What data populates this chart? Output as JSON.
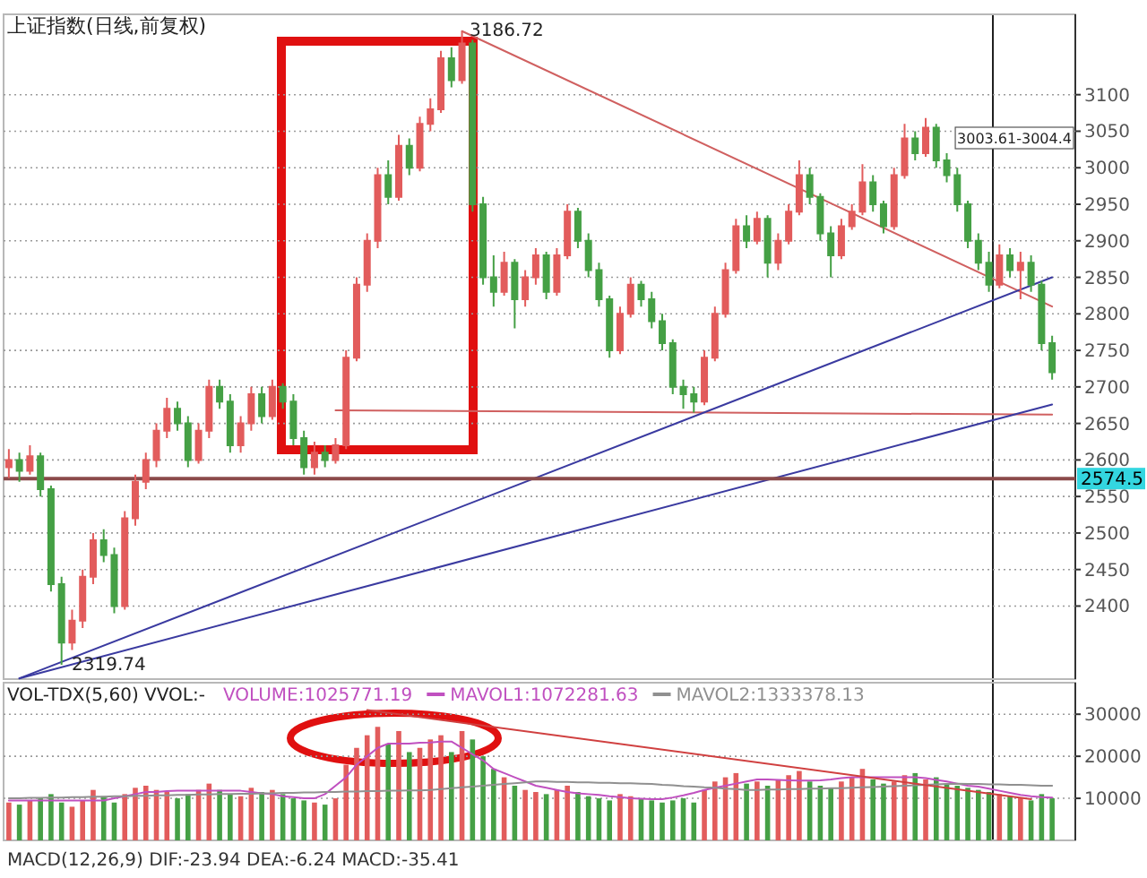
{
  "chart_data": [
    {
      "type": "candlestick",
      "title": "上证指数(日线,前复权)",
      "tick_labels": "y",
      "grid": "y",
      "categories": [
        null,
        null,
        null,
        null,
        null,
        null,
        null,
        null,
        null,
        null,
        null,
        null,
        null,
        null,
        null,
        null,
        null,
        null,
        null,
        null,
        null,
        null,
        null,
        null,
        null,
        null,
        null,
        null,
        null,
        null,
        null,
        null,
        null,
        null,
        null,
        null,
        null,
        null,
        null,
        null,
        null,
        null,
        null,
        null,
        null,
        null,
        null,
        null,
        null,
        null,
        null,
        null,
        null,
        null,
        null,
        null,
        null,
        null,
        null,
        null,
        null,
        null,
        null,
        null,
        null,
        null,
        null,
        null,
        null,
        null,
        null,
        null,
        null,
        null,
        null,
        null,
        null,
        null,
        null,
        null,
        null,
        null,
        null,
        null,
        null,
        null,
        null,
        null,
        null,
        null,
        null,
        null,
        null,
        null,
        null,
        null,
        null,
        null,
        null,
        null
      ],
      "ohlc": [
        [
          2590,
          2615,
          2575,
          2600
        ],
        [
          2600,
          2610,
          2570,
          2585
        ],
        [
          2585,
          2620,
          2580,
          2605
        ],
        [
          2605,
          2610,
          2550,
          2560
        ],
        [
          2560,
          2565,
          2420,
          2430
        ],
        [
          2430,
          2440,
          2319.74,
          2350
        ],
        [
          2350,
          2395,
          2340,
          2380
        ],
        [
          2380,
          2450,
          2370,
          2440
        ],
        [
          2440,
          2500,
          2430,
          2490
        ],
        [
          2490,
          2505,
          2460,
          2470
        ],
        [
          2470,
          2480,
          2390,
          2400
        ],
        [
          2400,
          2530,
          2395,
          2520
        ],
        [
          2520,
          2580,
          2510,
          2570
        ],
        [
          2570,
          2610,
          2560,
          2600
        ],
        [
          2600,
          2650,
          2590,
          2640
        ],
        [
          2640,
          2685,
          2630,
          2670
        ],
        [
          2670,
          2680,
          2640,
          2650
        ],
        [
          2650,
          2660,
          2590,
          2600
        ],
        [
          2600,
          2650,
          2595,
          2640
        ],
        [
          2640,
          2710,
          2630,
          2700
        ],
        [
          2700,
          2710,
          2670,
          2680
        ],
        [
          2680,
          2690,
          2610,
          2620
        ],
        [
          2620,
          2660,
          2610,
          2650
        ],
        [
          2650,
          2700,
          2640,
          2690
        ],
        [
          2690,
          2700,
          2650,
          2660
        ],
        [
          2660,
          2710,
          2655,
          2700
        ],
        [
          2700,
          2705,
          2670,
          2680
        ],
        [
          2680,
          2690,
          2620,
          2630
        ],
        [
          2630,
          2640,
          2580,
          2590
        ],
        [
          2590,
          2625,
          2580,
          2610
        ],
        [
          2610,
          2620,
          2590,
          2600
        ],
        [
          2600,
          2630,
          2595,
          2620
        ],
        [
          2620,
          2750,
          2615,
          2740
        ],
        [
          2740,
          2850,
          2735,
          2840
        ],
        [
          2840,
          2910,
          2830,
          2900
        ],
        [
          2900,
          3000,
          2890,
          2990
        ],
        [
          2990,
          3010,
          2950,
          2960
        ],
        [
          2960,
          3045,
          2955,
          3030
        ],
        [
          3030,
          3040,
          2990,
          3000
        ],
        [
          3000,
          3070,
          2995,
          3060
        ],
        [
          3060,
          3095,
          3050,
          3080
        ],
        [
          3080,
          3160,
          3075,
          3150
        ],
        [
          3150,
          3165,
          3110,
          3120
        ],
        [
          3120,
          3186.72,
          3115,
          3170
        ],
        [
          3170,
          3175,
          2940,
          2950
        ],
        [
          2950,
          2960,
          2840,
          2850
        ],
        [
          2850,
          2880,
          2810,
          2830
        ],
        [
          2830,
          2885,
          2825,
          2870
        ],
        [
          2870,
          2875,
          2780,
          2820
        ],
        [
          2820,
          2860,
          2810,
          2850
        ],
        [
          2850,
          2890,
          2840,
          2880
        ],
        [
          2880,
          2885,
          2820,
          2830
        ],
        [
          2830,
          2890,
          2825,
          2880
        ],
        [
          2880,
          2950,
          2875,
          2940
        ],
        [
          2940,
          2945,
          2890,
          2900
        ],
        [
          2900,
          2910,
          2850,
          2860
        ],
        [
          2860,
          2870,
          2810,
          2820
        ],
        [
          2820,
          2825,
          2740,
          2750
        ],
        [
          2750,
          2810,
          2745,
          2800
        ],
        [
          2800,
          2850,
          2795,
          2840
        ],
        [
          2840,
          2845,
          2810,
          2820
        ],
        [
          2820,
          2830,
          2780,
          2790
        ],
        [
          2790,
          2800,
          2750,
          2760
        ],
        [
          2760,
          2765,
          2690,
          2700
        ],
        [
          2700,
          2710,
          2670,
          2690
        ],
        [
          2690,
          2700,
          2665,
          2680
        ],
        [
          2680,
          2750,
          2675,
          2740
        ],
        [
          2740,
          2810,
          2735,
          2800
        ],
        [
          2800,
          2870,
          2795,
          2860
        ],
        [
          2860,
          2930,
          2855,
          2920
        ],
        [
          2920,
          2935,
          2890,
          2900
        ],
        [
          2900,
          2940,
          2895,
          2930
        ],
        [
          2930,
          2935,
          2850,
          2870
        ],
        [
          2870,
          2910,
          2860,
          2900
        ],
        [
          2900,
          2950,
          2895,
          2940
        ],
        [
          2940,
          3010,
          2935,
          2990
        ],
        [
          2990,
          3000,
          2950,
          2960
        ],
        [
          2960,
          2965,
          2900,
          2910
        ],
        [
          2910,
          2920,
          2850,
          2880
        ],
        [
          2880,
          2930,
          2875,
          2920
        ],
        [
          2920,
          2950,
          2915,
          2940
        ],
        [
          2940,
          3005,
          2935,
          2980
        ],
        [
          2980,
          2990,
          2940,
          2950
        ],
        [
          2950,
          2955,
          2910,
          2920
        ],
        [
          2920,
          3000,
          2915,
          2990
        ],
        [
          2990,
          3060,
          2985,
          3040
        ],
        [
          3040,
          3050,
          3010,
          3020
        ],
        [
          3020,
          3068,
          3015,
          3055
        ],
        [
          3055,
          3060,
          3000,
          3010
        ],
        [
          3010,
          3020,
          2980,
          2990
        ],
        [
          2990,
          3000,
          2940,
          2950
        ],
        [
          2950,
          2955,
          2890,
          2900
        ],
        [
          2900,
          2910,
          2860,
          2870
        ],
        [
          2870,
          2885,
          2830,
          2840
        ],
        [
          2840,
          2895,
          2835,
          2880
        ],
        [
          2880,
          2890,
          2850,
          2860
        ],
        [
          2860,
          2885,
          2820,
          2870
        ],
        [
          2870,
          2880,
          2830,
          2840
        ],
        [
          2840,
          2845,
          2750,
          2760
        ],
        [
          2760,
          2770,
          2710,
          2720
        ]
      ],
      "colors": [
        "#e25c5c",
        "#45a045",
        "#e25c5c",
        "#45a045",
        "#45a045",
        "#45a045",
        "#e25c5c",
        "#e25c5c",
        "#e25c5c",
        "#45a045",
        "#45a045",
        "#e25c5c",
        "#e25c5c",
        "#e25c5c",
        "#e25c5c",
        "#e25c5c",
        "#45a045",
        "#45a045",
        "#e25c5c",
        "#e25c5c",
        "#45a045",
        "#45a045",
        "#e25c5c",
        "#e25c5c",
        "#45a045",
        "#e25c5c",
        "#45a045",
        "#45a045",
        "#45a045",
        "#e25c5c",
        "#45a045",
        "#e25c5c",
        "#e25c5c",
        "#e25c5c",
        "#e25c5c",
        "#e25c5c",
        "#45a045",
        "#e25c5c",
        "#45a045",
        "#e25c5c",
        "#e25c5c",
        "#e25c5c",
        "#45a045",
        "#e25c5c",
        "#45a045",
        "#45a045",
        "#45a045",
        "#e25c5c",
        "#45a045",
        "#e25c5c",
        "#e25c5c",
        "#45a045",
        "#e25c5c",
        "#e25c5c",
        "#45a045",
        "#45a045",
        "#45a045",
        "#45a045",
        "#e25c5c",
        "#e25c5c",
        "#45a045",
        "#45a045",
        "#45a045",
        "#45a045",
        "#45a045",
        "#45a045",
        "#e25c5c",
        "#e25c5c",
        "#e25c5c",
        "#e25c5c",
        "#45a045",
        "#e25c5c",
        "#45a045",
        "#e25c5c",
        "#e25c5c",
        "#e25c5c",
        "#45a045",
        "#45a045",
        "#45a045",
        "#e25c5c",
        "#e25c5c",
        "#e25c5c",
        "#45a045",
        "#45a045",
        "#e25c5c",
        "#e25c5c",
        "#45a045",
        "#e25c5c",
        "#45a045",
        "#45a045",
        "#45a045",
        "#45a045",
        "#45a045",
        "#45a045",
        "#e25c5c",
        "#45a045",
        "#e25c5c",
        "#45a045",
        "#45a045",
        "#45a045"
      ],
      "ylim": [
        2300,
        3210
      ],
      "yticks": [
        2400,
        2450,
        2500,
        2550,
        2600,
        2650,
        2700,
        2750,
        2800,
        2850,
        2900,
        2950,
        3000,
        3050,
        3100
      ],
      "series": [
        {
          "type": "line",
          "color": "#d06060",
          "values": [
            null,
            null,
            null,
            null,
            null,
            null,
            null,
            null,
            null,
            null,
            null,
            null,
            null,
            null,
            null,
            null,
            null,
            null,
            null,
            null,
            null,
            null,
            null,
            null,
            null,
            null,
            null,
            null,
            null,
            null,
            null,
            null,
            null,
            null,
            null,
            null,
            null,
            null,
            null,
            null,
            null,
            null,
            null,
            3187,
            null,
            null,
            null,
            null,
            null,
            null,
            null,
            null,
            null,
            null,
            null,
            null,
            null,
            null,
            null,
            null,
            null,
            null,
            null,
            null,
            null,
            null,
            null,
            null,
            null,
            null,
            null,
            null,
            null,
            null,
            null,
            null,
            null,
            null,
            null,
            null,
            null,
            null,
            null,
            null,
            null,
            null,
            null,
            null,
            null,
            null,
            null,
            null,
            null,
            null,
            null,
            null,
            null,
            null,
            null,
            2810
          ]
        },
        {
          "type": "line",
          "color": "#d06060",
          "values": [
            null,
            null,
            null,
            null,
            null,
            null,
            null,
            null,
            null,
            null,
            null,
            null,
            null,
            null,
            null,
            null,
            null,
            null,
            null,
            null,
            null,
            null,
            null,
            null,
            null,
            null,
            null,
            null,
            null,
            null,
            null,
            2668,
            null,
            null,
            null,
            null,
            null,
            null,
            null,
            null,
            null,
            null,
            null,
            null,
            null,
            null,
            null,
            null,
            null,
            null,
            null,
            null,
            null,
            null,
            null,
            null,
            null,
            null,
            null,
            null,
            null,
            null,
            null,
            null,
            null,
            null,
            null,
            null,
            null,
            null,
            null,
            null,
            null,
            null,
            null,
            null,
            null,
            null,
            null,
            null,
            null,
            null,
            null,
            null,
            null,
            null,
            null,
            null,
            null,
            null,
            null,
            null,
            null,
            null,
            null,
            null,
            null,
            null,
            null,
            2662
          ]
        },
        {
          "type": "line",
          "color": "#3a3aa0",
          "values": [
            null,
            2301,
            null,
            null,
            null,
            null,
            null,
            null,
            null,
            null,
            null,
            null,
            null,
            null,
            null,
            null,
            null,
            null,
            null,
            null,
            null,
            null,
            null,
            null,
            null,
            null,
            null,
            null,
            null,
            null,
            null,
            null,
            null,
            null,
            null,
            null,
            null,
            null,
            null,
            null,
            null,
            null,
            null,
            null,
            null,
            null,
            null,
            null,
            null,
            null,
            null,
            null,
            null,
            null,
            null,
            null,
            null,
            null,
            null,
            null,
            null,
            null,
            null,
            null,
            null,
            null,
            null,
            null,
            null,
            null,
            null,
            null,
            null,
            null,
            null,
            null,
            null,
            null,
            null,
            null,
            null,
            null,
            null,
            null,
            null,
            null,
            null,
            null,
            null,
            null,
            null,
            null,
            null,
            null,
            null,
            null,
            null,
            null,
            null,
            2850
          ]
        },
        {
          "type": "line",
          "color": "#3a3aa0",
          "values": [
            null,
            2301,
            null,
            null,
            null,
            null,
            null,
            null,
            null,
            null,
            null,
            null,
            null,
            null,
            null,
            null,
            null,
            null,
            null,
            null,
            null,
            null,
            null,
            null,
            null,
            null,
            null,
            null,
            null,
            null,
            null,
            null,
            null,
            null,
            null,
            null,
            null,
            null,
            null,
            null,
            null,
            null,
            null,
            null,
            null,
            null,
            null,
            null,
            null,
            null,
            null,
            null,
            null,
            null,
            null,
            null,
            null,
            null,
            null,
            null,
            null,
            null,
            null,
            null,
            null,
            null,
            null,
            null,
            null,
            null,
            null,
            null,
            null,
            null,
            null,
            null,
            null,
            null,
            null,
            null,
            null,
            null,
            null,
            null,
            null,
            null,
            null,
            null,
            null,
            null,
            null,
            null,
            null,
            null,
            null,
            null,
            null,
            null,
            null,
            2676
          ]
        }
      ],
      "ref_lines": [
        {
          "axis": "y",
          "value": 2574.5,
          "label": "2574.5",
          "color": "#8b4a4a"
        }
      ],
      "annotations": [
        "3186.72",
        "2319.74",
        "3003.61-3004.4"
      ]
    },
    {
      "type": "bar",
      "title": "VOL-TDX(5,60) VVOL:-",
      "tick_labels": "y",
      "grid": "y",
      "legend": "top",
      "categories": [
        null,
        null,
        null,
        null,
        null,
        null,
        null,
        null,
        null,
        null,
        null,
        null,
        null,
        null,
        null,
        null,
        null,
        null,
        null,
        null,
        null,
        null,
        null,
        null,
        null,
        null,
        null,
        null,
        null,
        null,
        null,
        null,
        null,
        null,
        null,
        null,
        null,
        null,
        null,
        null,
        null,
        null,
        null,
        null,
        null,
        null,
        null,
        null,
        null,
        null,
        null,
        null,
        null,
        null,
        null,
        null,
        null,
        null,
        null,
        null,
        null,
        null,
        null,
        null,
        null,
        null,
        null,
        null,
        null,
        null,
        null,
        null,
        null,
        null,
        null,
        null,
        null,
        null,
        null,
        null,
        null,
        null,
        null,
        null,
        null,
        null,
        null,
        null,
        null,
        null,
        null,
        null,
        null,
        null,
        null,
        null,
        null,
        null,
        null,
        null
      ],
      "ylim": [
        0,
        37500
      ],
      "yticks": [
        10000,
        20000,
        30000
      ],
      "series": [
        {
          "type": "bar",
          "colors": [
            "#e25c5c",
            "#45a045",
            "#e25c5c",
            "#45a045",
            "#45a045",
            "#45a045",
            "#e25c5c",
            "#e25c5c",
            "#e25c5c",
            "#45a045",
            "#45a045",
            "#e25c5c",
            "#e25c5c",
            "#e25c5c",
            "#e25c5c",
            "#e25c5c",
            "#45a045",
            "#45a045",
            "#e25c5c",
            "#e25c5c",
            "#45a045",
            "#45a045",
            "#e25c5c",
            "#e25c5c",
            "#45a045",
            "#e25c5c",
            "#45a045",
            "#45a045",
            "#45a045",
            "#e25c5c",
            "#45a045",
            "#e25c5c",
            "#e25c5c",
            "#e25c5c",
            "#e25c5c",
            "#e25c5c",
            "#45a045",
            "#e25c5c",
            "#45a045",
            "#e25c5c",
            "#e25c5c",
            "#e25c5c",
            "#45a045",
            "#e25c5c",
            "#45a045",
            "#45a045",
            "#45a045",
            "#e25c5c",
            "#45a045",
            "#e25c5c",
            "#e25c5c",
            "#45a045",
            "#e25c5c",
            "#e25c5c",
            "#45a045",
            "#45a045",
            "#45a045",
            "#45a045",
            "#e25c5c",
            "#e25c5c",
            "#45a045",
            "#45a045",
            "#45a045",
            "#45a045",
            "#45a045",
            "#45a045",
            "#e25c5c",
            "#e25c5c",
            "#e25c5c",
            "#e25c5c",
            "#45a045",
            "#e25c5c",
            "#45a045",
            "#e25c5c",
            "#e25c5c",
            "#e25c5c",
            "#45a045",
            "#45a045",
            "#45a045",
            "#e25c5c",
            "#e25c5c",
            "#e25c5c",
            "#45a045",
            "#45a045",
            "#e25c5c",
            "#e25c5c",
            "#45a045",
            "#e25c5c",
            "#45a045",
            "#45a045",
            "#45a045",
            "#45a045",
            "#45a045",
            "#45a045",
            "#e25c5c",
            "#45a045",
            "#e25c5c",
            "#45a045",
            "#45a045",
            "#45a045"
          ],
          "values": [
            9000,
            8500,
            9500,
            10000,
            11000,
            9000,
            8000,
            9500,
            12000,
            10500,
            9000,
            11000,
            12500,
            13000,
            12000,
            11500,
            10000,
            11000,
            12000,
            13500,
            12000,
            11000,
            10500,
            12500,
            11500,
            12000,
            11000,
            10000,
            9500,
            9000,
            8500,
            10000,
            18000,
            22000,
            25000,
            27000,
            23000,
            26000,
            21000,
            22000,
            24000,
            25000,
            21000,
            26000,
            24000,
            20000,
            17000,
            15000,
            13000,
            12000,
            11500,
            11000,
            12000,
            13000,
            11500,
            10500,
            10000,
            9500,
            11000,
            10500,
            10000,
            9500,
            9000,
            9500,
            10000,
            9000,
            12000,
            14000,
            15000,
            16000,
            13500,
            14000,
            13000,
            14500,
            15500,
            16500,
            14000,
            13000,
            12500,
            14000,
            15000,
            17000,
            14500,
            13500,
            14000,
            15500,
            16000,
            14500,
            15000,
            13500,
            13000,
            12500,
            12000,
            11500,
            11000,
            10500,
            10000,
            9500,
            11000,
            10000
          ]
        },
        {
          "type": "line",
          "name": "MAVOL1:1072281.63",
          "color": "#c050c0",
          "values": [
            9500,
            9500,
            9500,
            9500,
            9500,
            9500,
            9500,
            9500,
            9500,
            9500,
            10000,
            10500,
            11000,
            11500,
            11500,
            11700,
            11800,
            11800,
            11800,
            11800,
            11800,
            11800,
            11800,
            11500,
            11200,
            11000,
            10500,
            10300,
            10000,
            10000,
            11000,
            13000,
            15000,
            18000,
            20000,
            22000,
            23000,
            23000,
            23000,
            23200,
            23300,
            23500,
            23500,
            22000,
            20500,
            19000,
            17000,
            16000,
            15000,
            14000,
            13000,
            12500,
            12000,
            11500,
            11200,
            11000,
            10800,
            10500,
            10300,
            10000,
            9900,
            9800,
            9800,
            10200,
            10700,
            11300,
            12000,
            12500,
            13000,
            13500,
            14000,
            14500,
            14500,
            14400,
            14300,
            14200,
            14200,
            14300,
            14500,
            14800,
            15000,
            15000,
            15000,
            15000,
            15000,
            15000,
            15000,
            14800,
            14400,
            14000,
            13500,
            13000,
            12800,
            12300,
            11800,
            11300,
            10800,
            10500,
            10300,
            10200
          ]
        },
        {
          "type": "line",
          "name": "MAVOL2:1333378.13",
          "color": "#909090",
          "values": [
            10000,
            10000,
            10100,
            10100,
            10200,
            10200,
            10300,
            10300,
            10400,
            10400,
            10500,
            10500,
            10600,
            10600,
            10700,
            10700,
            10800,
            10800,
            10900,
            10900,
            11000,
            11000,
            11100,
            11100,
            11200,
            11200,
            11300,
            11300,
            11400,
            11400,
            11500,
            11500,
            11600,
            11600,
            11700,
            11700,
            11800,
            11800,
            11900,
            11900,
            12000,
            12200,
            12400,
            12600,
            12800,
            13000,
            13200,
            13400,
            13600,
            13800,
            14000,
            14000,
            13900,
            13900,
            13800,
            13800,
            13700,
            13700,
            13600,
            13600,
            13500,
            13400,
            13200,
            13100,
            12900,
            12800,
            12600,
            12500,
            12300,
            12200,
            12000,
            12000,
            12100,
            12100,
            12200,
            12200,
            12300,
            12300,
            12400,
            12400,
            12500,
            12600,
            12700,
            12800,
            12900,
            13000,
            13100,
            13200,
            13300,
            13400,
            13500,
            13400,
            13400,
            13300,
            13300,
            13200,
            13200,
            13100,
            13000,
            13000
          ]
        },
        {
          "type": "line",
          "color": "#d04040",
          "values": [
            null,
            null,
            null,
            null,
            null,
            null,
            null,
            null,
            null,
            null,
            null,
            null,
            null,
            null,
            null,
            null,
            null,
            null,
            null,
            null,
            null,
            null,
            null,
            null,
            null,
            null,
            null,
            null,
            null,
            null,
            null,
            null,
            null,
            null,
            31000,
            null,
            null,
            null,
            null,
            null,
            null,
            null,
            null,
            null,
            null,
            null,
            null,
            null,
            null,
            null,
            null,
            null,
            null,
            null,
            null,
            null,
            null,
            null,
            null,
            null,
            null,
            null,
            null,
            null,
            null,
            null,
            null,
            null,
            null,
            null,
            null,
            null,
            null,
            null,
            null,
            null,
            null,
            null,
            null,
            null,
            null,
            null,
            null,
            null,
            null,
            null,
            null,
            null,
            null,
            null,
            null,
            null,
            null,
            null,
            null,
            null,
            null,
            9800,
            null,
            null
          ]
        }
      ],
      "annotations": [
        "VOLUME:1025771.19",
        "MACD(12,26,9) DIF:-23.94 DEA:-6.24 MACD:-35.41"
      ]
    }
  ]
}
